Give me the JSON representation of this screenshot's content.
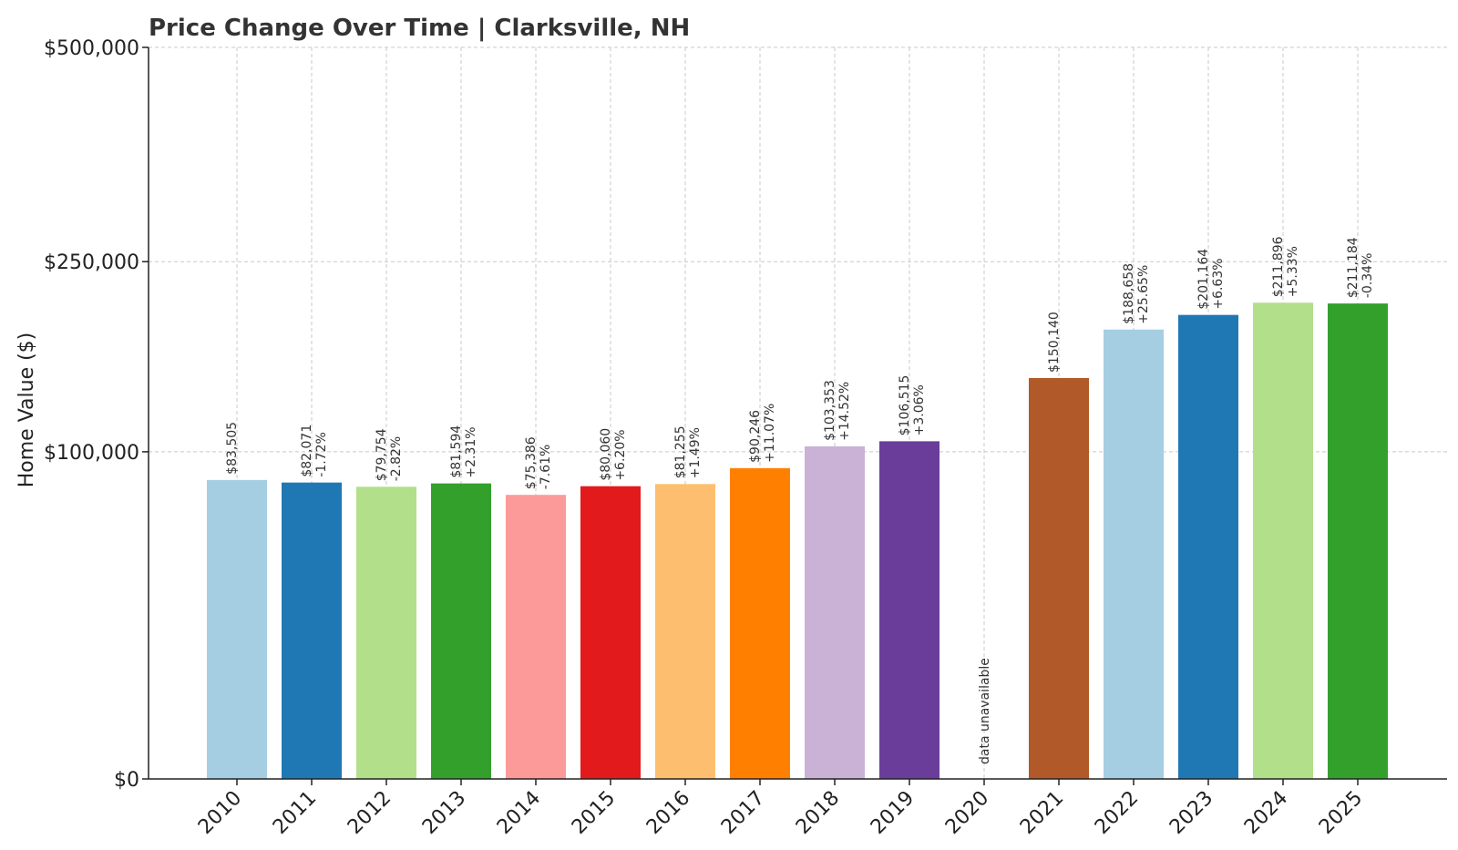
{
  "chart_data": {
    "type": "bar",
    "title": "Price Change Over Time | Clarksville, NH",
    "ylabel": "Home Value ($)",
    "xlabel": "",
    "ylim": [
      0,
      500000
    ],
    "yscale": "sqrt",
    "yticks": [
      0,
      100000,
      250000,
      500000
    ],
    "ytick_labels": [
      "$0",
      "$100,000",
      "$250,000",
      "$500,000"
    ],
    "grid": true,
    "categories": [
      "2010",
      "2011",
      "2012",
      "2013",
      "2014",
      "2015",
      "2016",
      "2017",
      "2018",
      "2019",
      "2020",
      "2021",
      "2022",
      "2023",
      "2024",
      "2025"
    ],
    "values": [
      83505,
      82071,
      79754,
      81594,
      75386,
      80060,
      81255,
      90246,
      103353,
      106515,
      null,
      150140,
      188658,
      201164,
      211896,
      211184
    ],
    "value_labels": [
      "$83,505",
      "$82,071",
      "$79,754",
      "$81,594",
      "$75,386",
      "$80,060",
      "$81,255",
      "$90,246",
      "$103,353",
      "$106,515",
      "",
      "$150,140",
      "$188,658",
      "$201,164",
      "$211,896",
      "$211,184"
    ],
    "change_labels": [
      "",
      "-1.72%",
      "-2.82%",
      "+2.31%",
      "-7.61%",
      "+6.20%",
      "+1.49%",
      "+11.07%",
      "+14.52%",
      "+3.06%",
      "",
      "",
      "+25.65%",
      "+6.63%",
      "+5.33%",
      "-0.34%"
    ],
    "missing_label": "data unavailable",
    "colors": [
      "#a6cee3",
      "#1f78b4",
      "#b2df8a",
      "#33a02c",
      "#fb9a99",
      "#e31a1c",
      "#fdbf6f",
      "#ff7f00",
      "#cab2d6",
      "#6a3d9a",
      "#ffff99",
      "#b15928",
      "#a6cee3",
      "#1f78b4",
      "#b2df8a",
      "#33a02c"
    ]
  }
}
